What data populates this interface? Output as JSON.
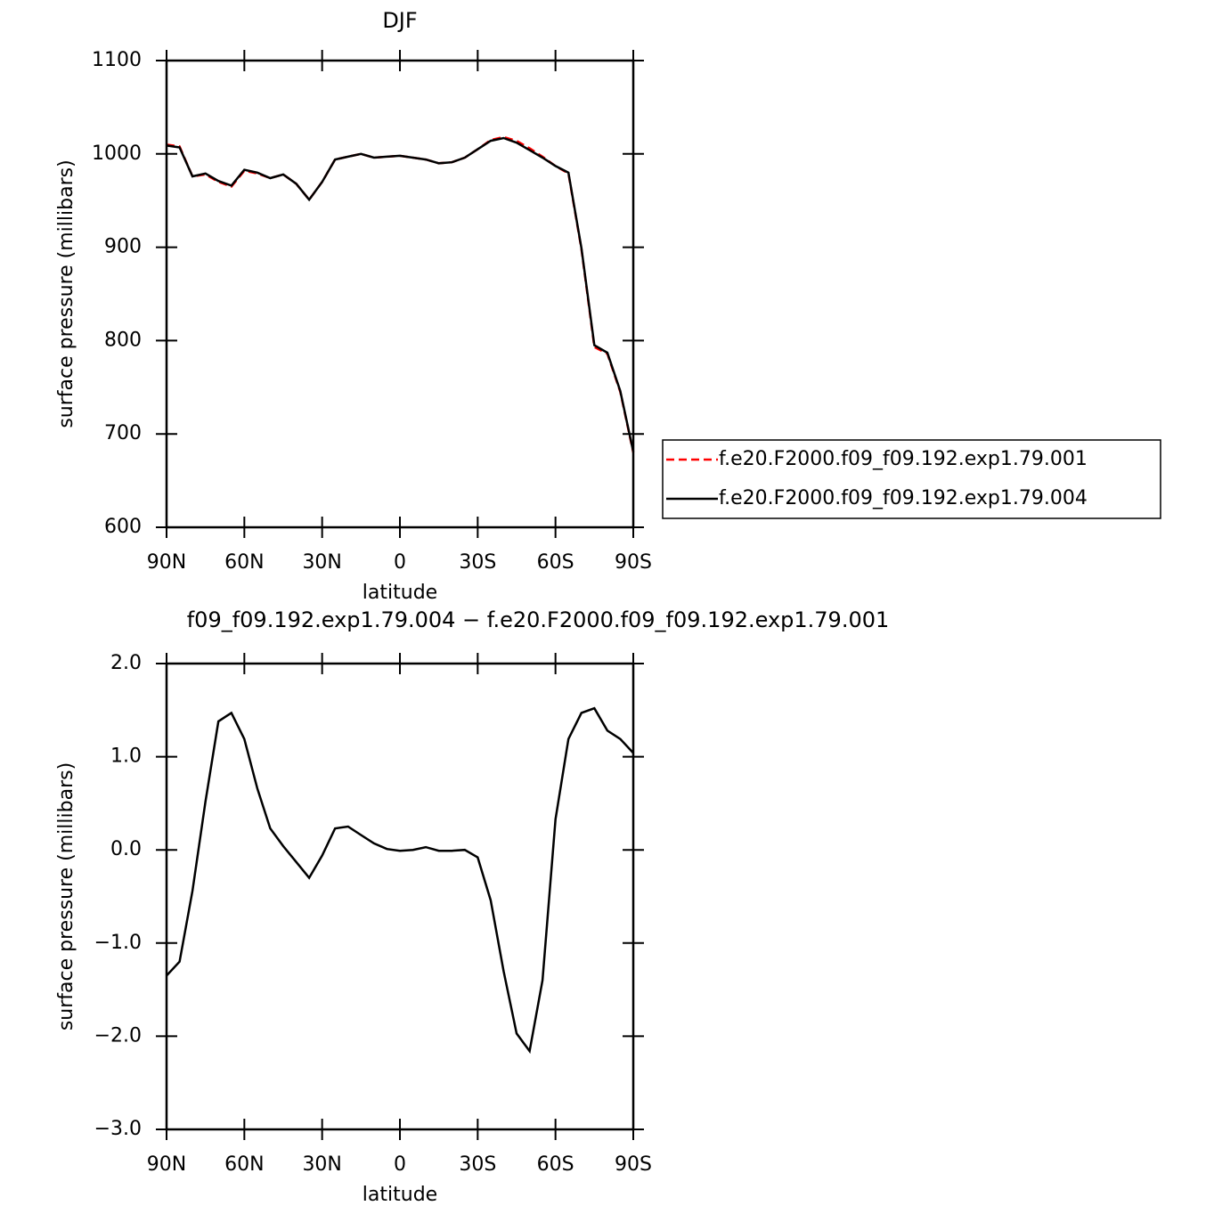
{
  "chart_data": [
    {
      "type": "line",
      "title": "DJF",
      "xlabel": "latitude",
      "ylabel": "surface pressure (millibars)",
      "x": [
        90,
        85,
        80,
        75,
        70,
        65,
        60,
        55,
        50,
        45,
        40,
        35,
        30,
        25,
        20,
        15,
        10,
        5,
        0,
        -5,
        -10,
        -15,
        -20,
        -25,
        -30,
        -35,
        -40,
        -45,
        -50,
        -55,
        -60,
        -65,
        -70,
        -75,
        -80,
        -85,
        -90
      ],
      "series": [
        {
          "name": "f.e20.F2000.f09_f09.192.exp1.79.001",
          "color": "#ff0000",
          "dashed": true,
          "values": [
            1010,
            1008,
            976,
            978,
            970,
            965,
            982,
            979,
            974,
            978,
            968,
            951,
            970,
            994,
            997,
            1000,
            996,
            997,
            998,
            996,
            994,
            990,
            991,
            996,
            1005,
            1015,
            1018,
            1014,
            1006,
            997,
            987,
            979,
            898,
            793,
            786,
            745,
            680
          ]
        },
        {
          "name": "f.e20.F2000.f09_f09.192.exp1.79.004",
          "color": "#000000",
          "dashed": false,
          "values": [
            1009,
            1007,
            976,
            979,
            971,
            966,
            983,
            980,
            974,
            978,
            968,
            951,
            970,
            994,
            997,
            1000,
            996,
            997,
            998,
            996,
            994,
            990,
            991,
            996,
            1005,
            1014,
            1017,
            1012,
            1004,
            996,
            987,
            980,
            899,
            795,
            787,
            746,
            681
          ]
        }
      ],
      "xlim": [
        90,
        -90
      ],
      "xticks": [
        {
          "value": 90,
          "label": "90N"
        },
        {
          "value": 60,
          "label": "60N"
        },
        {
          "value": 30,
          "label": "30N"
        },
        0,
        {
          "value": -30,
          "label": "30S"
        },
        {
          "value": -60,
          "label": "60S"
        },
        {
          "value": -90,
          "label": "90S"
        }
      ],
      "ylim": [
        600,
        1100
      ],
      "yticks": [
        600,
        700,
        800,
        900,
        1000,
        1100
      ],
      "legend": "right"
    },
    {
      "type": "line",
      "title": "f09_f09.192.exp1.79.004 − f.e20.F2000.f09_f09.192.exp1.79.001",
      "xlabel": "latitude",
      "ylabel": "surface pressure (millibars)",
      "x": [
        90,
        85,
        80,
        75,
        70,
        65,
        60,
        55,
        50,
        45,
        40,
        35,
        30,
        25,
        20,
        15,
        10,
        5,
        0,
        -5,
        -10,
        -15,
        -20,
        -25,
        -30,
        -35,
        -40,
        -45,
        -50,
        -55,
        -60,
        -65,
        -70,
        -75,
        -80,
        -85,
        -90
      ],
      "series": [
        {
          "color": "#000000",
          "dashed": false,
          "values": [
            -1.35,
            -1.2,
            -0.44,
            0.52,
            1.38,
            1.47,
            1.19,
            0.66,
            0.23,
            0.04,
            -0.13,
            -0.3,
            -0.06,
            0.23,
            0.25,
            0.16,
            0.07,
            0.01,
            -0.01,
            0.0,
            0.03,
            -0.01,
            -0.01,
            0.0,
            -0.08,
            -0.54,
            -1.3,
            -1.97,
            -2.16,
            -1.4,
            0.33,
            1.19,
            1.47,
            1.52,
            1.28,
            1.19,
            1.04
          ]
        }
      ],
      "xlim": [
        90,
        -90
      ],
      "xticks": [
        {
          "value": 90,
          "label": "90N"
        },
        {
          "value": 60,
          "label": "60N"
        },
        {
          "value": 30,
          "label": "30N"
        },
        0,
        {
          "value": -30,
          "label": "30S"
        },
        {
          "value": -60,
          "label": "60S"
        },
        {
          "value": -90,
          "label": "90S"
        }
      ],
      "ylim": [
        -3,
        2
      ],
      "yticks": [
        {
          "value": -3,
          "label": "−3.0"
        },
        {
          "value": -2,
          "label": "−2.0"
        },
        {
          "value": -1,
          "label": "−1.0"
        },
        {
          "value": 0,
          "label": "0.0"
        },
        {
          "value": 1,
          "label": "1.0"
        },
        {
          "value": 2,
          "label": "2.0"
        }
      ]
    }
  ]
}
